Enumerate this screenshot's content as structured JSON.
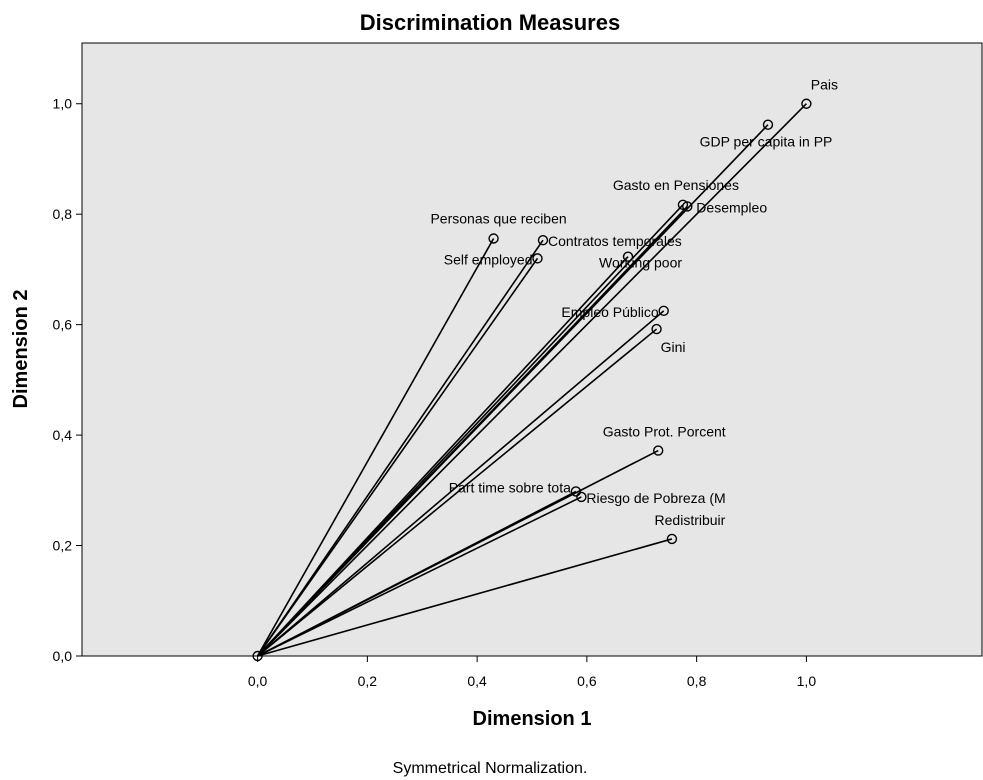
{
  "chart_data": {
    "type": "scatter",
    "title": "Discrimination Measures",
    "xlabel": "Dimension 1",
    "ylabel": "Dimension 2",
    "footnote": "Symmetrical Normalization.",
    "xlim": [
      -0.32,
      1.32
    ],
    "ylim": [
      0.0,
      1.11
    ],
    "xticks": [
      0.0,
      0.2,
      0.4,
      0.6,
      0.8,
      1.0
    ],
    "xtick_labels": [
      "0,0",
      "0,2",
      "0,4",
      "0,6",
      "0,8",
      "1,0"
    ],
    "yticks": [
      0.0,
      0.2,
      0.4,
      0.6,
      0.8,
      1.0
    ],
    "ytick_labels": [
      "0,0",
      "0,2",
      "0,4",
      "0,6",
      "0,8",
      "1,0"
    ],
    "vectors_from_origin": true,
    "grid": false,
    "background": "#e6e6e6",
    "line_color": "#000000",
    "points": [
      {
        "label": "Pais",
        "x": 1.0,
        "y": 1.0
      },
      {
        "label": "GDP per capita in PP",
        "x": 0.93,
        "y": 0.962
      },
      {
        "label": "Gasto en Pensiones",
        "x": 0.775,
        "y": 0.817
      },
      {
        "label": "Desempleo",
        "x": 0.783,
        "y": 0.814
      },
      {
        "label": "Personas que reciben",
        "x": 0.43,
        "y": 0.756
      },
      {
        "label": "Contratos temporales",
        "x": 0.52,
        "y": 0.753
      },
      {
        "label": "Self employed",
        "x": 0.51,
        "y": 0.72
      },
      {
        "label": "Working poor",
        "x": 0.675,
        "y": 0.723
      },
      {
        "label": "Empleo Público",
        "x": 0.74,
        "y": 0.625
      },
      {
        "label": "Gini",
        "x": 0.727,
        "y": 0.592
      },
      {
        "label": "Gasto Prot. Porcent",
        "x": 0.73,
        "y": 0.372
      },
      {
        "label": "Part time sobre tota",
        "x": 0.58,
        "y": 0.298
      },
      {
        "label": "Riesgo de Pobreza (M",
        "x": 0.59,
        "y": 0.288
      },
      {
        "label": "Redistribuir",
        "x": 0.755,
        "y": 0.212
      }
    ],
    "origin_point": {
      "x": 0.0,
      "y": 0.0
    }
  }
}
